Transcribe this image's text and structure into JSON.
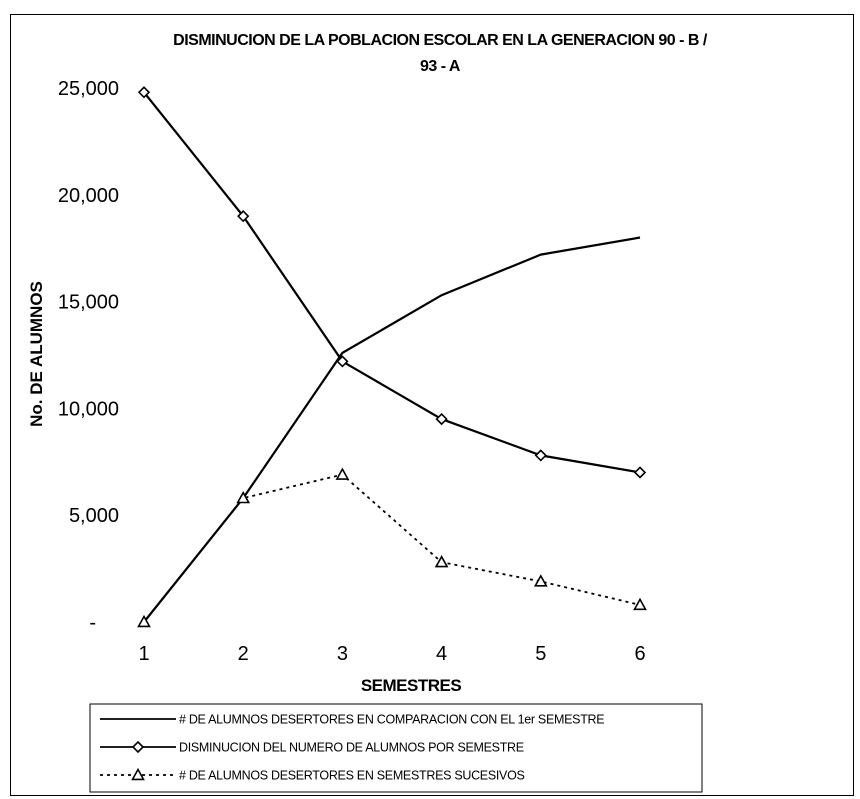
{
  "chart_data": {
    "type": "line",
    "title_line1": "DISMINUCION DE LA POBLACION ESCOLAR EN LA GENERACION 90 - B /",
    "title_line2": "93 - A",
    "xlabel": "SEMESTRES",
    "ylabel": "No. DE ALUMNOS",
    "x": [
      1,
      2,
      3,
      4,
      5,
      6
    ],
    "xticks": [
      "1",
      "2",
      "3",
      "4",
      "5",
      "6"
    ],
    "ylim": [
      0,
      25000
    ],
    "yticks": [
      {
        "value": 0,
        "label": "-"
      },
      {
        "value": 5000,
        "label": "5,000"
      },
      {
        "value": 10000,
        "label": "10,000"
      },
      {
        "value": 15000,
        "label": "15,000"
      },
      {
        "value": 20000,
        "label": "20,000"
      },
      {
        "value": 25000,
        "label": "25,000"
      }
    ],
    "grid": false,
    "legend_position": "bottom",
    "series": [
      {
        "name": "# DE ALUMNOS DESERTORES EN COMPARACION CON EL 1er SEMESTRE",
        "values": [
          0,
          5800,
          12600,
          15300,
          17200,
          18000
        ],
        "style": "solid",
        "marker": "none",
        "color": "#000000"
      },
      {
        "name": "DISMINUCION DEL NUMERO DE ALUMNOS POR SEMESTRE",
        "values": [
          24800,
          19000,
          12200,
          9500,
          7800,
          7000
        ],
        "style": "solid",
        "marker": "diamond",
        "color": "#000000"
      },
      {
        "name": "# DE ALUMNOS DESERTORES EN SEMESTRES SUCESIVOS",
        "values": [
          0,
          5800,
          6900,
          2800,
          1900,
          800
        ],
        "style": "dotted",
        "marker": "triangle",
        "color": "#000000"
      }
    ]
  }
}
